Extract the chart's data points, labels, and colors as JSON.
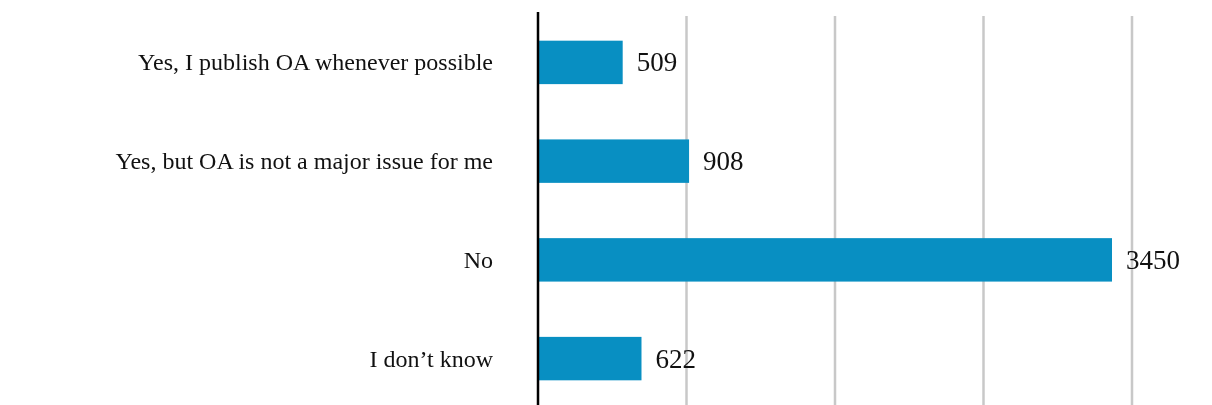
{
  "chart_data": {
    "type": "bar",
    "orientation": "horizontal",
    "categories": [
      "Yes, I publish OA whenever possible",
      "Yes, but OA is not a major issue for me",
      "No",
      "I don’t know"
    ],
    "values": [
      509,
      908,
      3450,
      622
    ],
    "data_labels": true,
    "color": "#088fc2",
    "grid": "x"
  }
}
